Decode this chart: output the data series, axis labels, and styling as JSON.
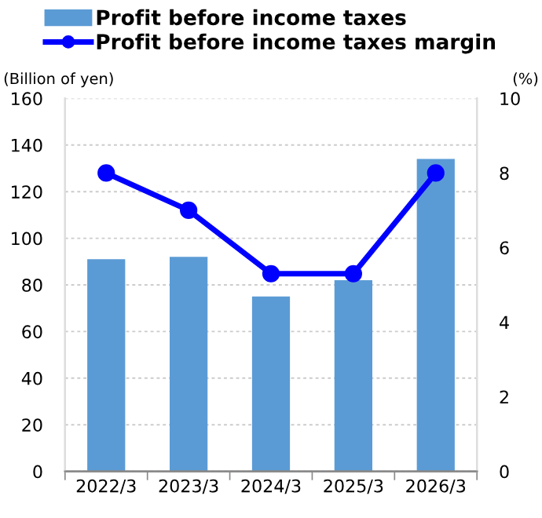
{
  "chart_data": {
    "type": "bar",
    "categories": [
      "2022/3",
      "2023/3",
      "2024/3",
      "2025/3",
      "2026/3"
    ],
    "series": [
      {
        "name": "Profit before income taxes",
        "color": "#5b9bd5",
        "values": [
          91,
          92,
          75,
          82,
          134
        ]
      },
      {
        "name": "Profit before income taxes margin",
        "type": "line",
        "axis": "y2",
        "color": "#0000ff",
        "marker": "circle",
        "values": [
          8.0,
          7.0,
          5.3,
          5.3,
          8.0
        ]
      }
    ],
    "ylabel": "(Billion of yen)",
    "y2label": "(%)",
    "ylim": [
      0,
      160
    ],
    "yticks": [
      0,
      20,
      40,
      60,
      80,
      100,
      120,
      140,
      160
    ],
    "y2lim": [
      0,
      10
    ],
    "y2ticks": [
      0,
      2,
      4,
      6,
      8,
      10
    ],
    "grid": "y",
    "legend": "top"
  }
}
